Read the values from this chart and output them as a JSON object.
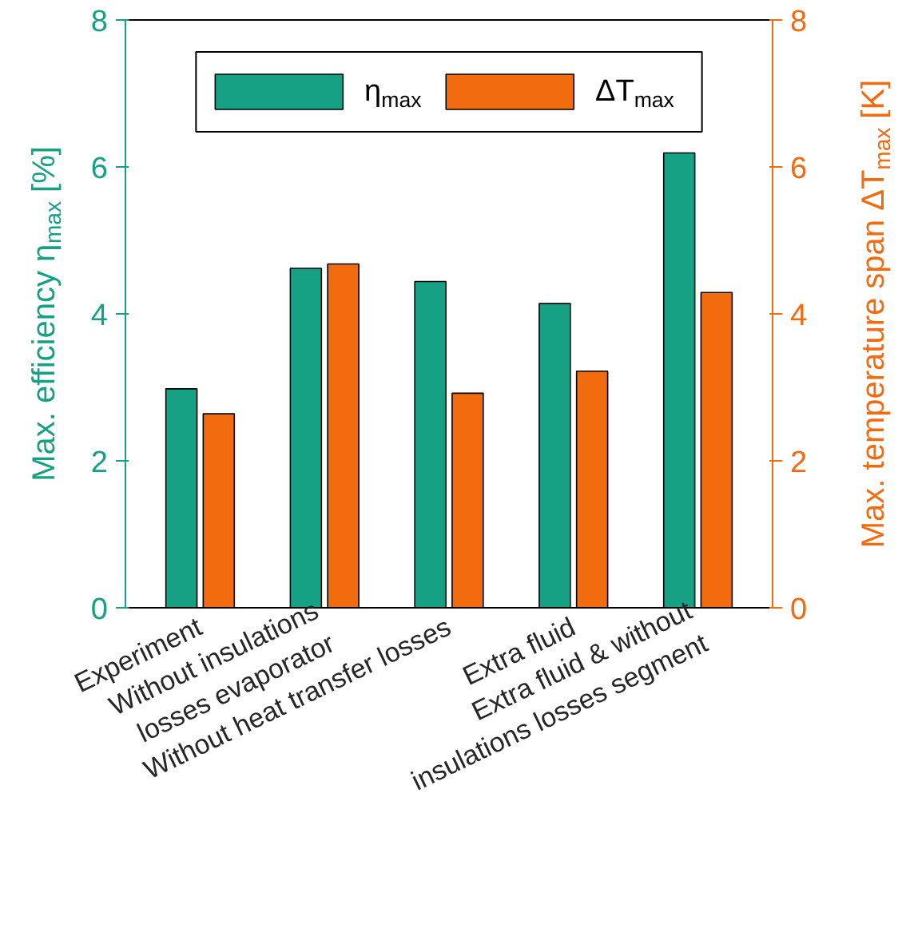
{
  "chart_data": {
    "type": "bar",
    "categories": [
      "Experiment",
      "Without insulations\nlosses evaporator",
      "Without heat transfer losses",
      "Extra fluid",
      "Extra fluid & without\ninsulations losses segment"
    ],
    "series": [
      {
        "name": "η$_{max}$",
        "color": "#17a184",
        "values": [
          2.98,
          4.62,
          4.44,
          4.14,
          6.19
        ]
      },
      {
        "name": "ΔT$_{max}$",
        "color": "#f26b0f",
        "values": [
          2.64,
          4.68,
          2.92,
          3.22,
          4.29
        ],
        "axis": "y2"
      }
    ],
    "ylabel": "Max. efficiency η$_{max}$ [%]",
    "y2label": "Max. temperature span ΔT$_{max}$ [K]",
    "ylim": [
      0,
      8
    ],
    "yticks": [
      0,
      2,
      4,
      6,
      8
    ],
    "y2lim": [
      0,
      8
    ],
    "y2ticks": [
      0,
      2,
      4,
      6,
      8
    ],
    "legend": "top",
    "grid": false
  }
}
